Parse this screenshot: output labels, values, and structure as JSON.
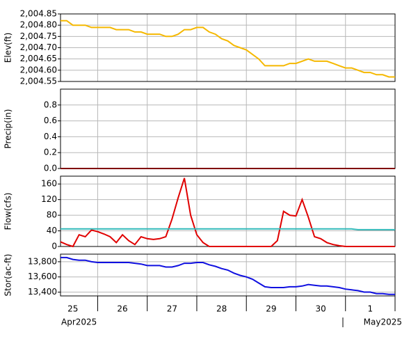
{
  "chart_data": [
    {
      "type": "line",
      "ylabel": "Elev(ft)",
      "ylim": [
        2004.55,
        2004.85
      ],
      "yticks": [
        {
          "value": 2004.55,
          "label": "2,004.55"
        },
        {
          "value": 2004.6,
          "label": "2,004.60"
        },
        {
          "value": 2004.65,
          "label": "2,004.65"
        },
        {
          "value": 2004.7,
          "label": "2,004.70"
        },
        {
          "value": 2004.75,
          "label": "2,004.75"
        },
        {
          "value": 2004.8,
          "label": "2,004.80"
        },
        {
          "value": 2004.85,
          "label": "2,004.85"
        }
      ],
      "series": [
        {
          "color": "#f5b800",
          "values": [
            2004.82,
            2004.82,
            2004.8,
            2004.8,
            2004.8,
            2004.79,
            2004.79,
            2004.79,
            2004.79,
            2004.78,
            2004.78,
            2004.78,
            2004.77,
            2004.77,
            2004.76,
            2004.76,
            2004.76,
            2004.75,
            2004.75,
            2004.76,
            2004.78,
            2004.78,
            2004.79,
            2004.79,
            2004.77,
            2004.76,
            2004.74,
            2004.73,
            2004.71,
            2004.7,
            2004.69,
            2004.67,
            2004.65,
            2004.62,
            2004.62,
            2004.62,
            2004.62,
            2004.63,
            2004.63,
            2004.64,
            2004.65,
            2004.64,
            2004.64,
            2004.64,
            2004.63,
            2004.62,
            2004.61,
            2004.61,
            2004.6,
            2004.59,
            2004.59,
            2004.58,
            2004.58,
            2004.57,
            2004.57
          ]
        }
      ]
    },
    {
      "type": "line",
      "ylabel": "Precip(in)",
      "ylim": [
        0,
        1
      ],
      "yticks": [
        {
          "value": 0,
          "label": "0.0"
        },
        0.2,
        0.4,
        0.6,
        0.8
      ],
      "series": [
        {
          "color": "#800000",
          "values": [
            0,
            0,
            0,
            0,
            0,
            0,
            0,
            0,
            0,
            0,
            0,
            0,
            0,
            0,
            0,
            0,
            0,
            0,
            0,
            0,
            0,
            0,
            0,
            0,
            0,
            0,
            0,
            0,
            0,
            0,
            0,
            0,
            0,
            0,
            0,
            0,
            0,
            0,
            0,
            0,
            0,
            0,
            0,
            0,
            0,
            0,
            0,
            0,
            0,
            0,
            0,
            0,
            0,
            0,
            0
          ]
        }
      ]
    },
    {
      "type": "line",
      "ylabel": "Flow(cfs)",
      "ylim": [
        0,
        180
      ],
      "yticks": [
        0,
        40,
        80,
        120,
        160
      ],
      "series": [
        {
          "color": "#e00000",
          "values": [
            12,
            5,
            0,
            30,
            25,
            42,
            38,
            32,
            25,
            10,
            30,
            15,
            5,
            25,
            20,
            18,
            20,
            25,
            70,
            125,
            175,
            80,
            30,
            10,
            0,
            0,
            0,
            0,
            0,
            0,
            0,
            0,
            0,
            0,
            0,
            15,
            90,
            80,
            78,
            120,
            75,
            25,
            20,
            10,
            5,
            2,
            0,
            0,
            0,
            0,
            0,
            0,
            0,
            0,
            0
          ]
        },
        {
          "color": "#30b8b8",
          "values": [
            45,
            45,
            45,
            45,
            45,
            45,
            45,
            45,
            45,
            45,
            45,
            45,
            45,
            45,
            45,
            45,
            45,
            45,
            45,
            45,
            45,
            45,
            45,
            45,
            45,
            45,
            45,
            45,
            45,
            45,
            45,
            45,
            45,
            45,
            45,
            45,
            45,
            45,
            45,
            45,
            45,
            45,
            45,
            45,
            45,
            45,
            45,
            45,
            43,
            43,
            43,
            43,
            43,
            43,
            43
          ]
        }
      ]
    },
    {
      "type": "line",
      "ylabel": "Stor(ac-ft)",
      "ylim": [
        13350,
        13900
      ],
      "yticks": [
        {
          "value": 13400,
          "label": "13,400"
        },
        {
          "value": 13600,
          "label": "13,600"
        },
        {
          "value": 13800,
          "label": "13,800"
        }
      ],
      "series": [
        {
          "color": "#1010e0",
          "values": [
            13855,
            13855,
            13830,
            13820,
            13820,
            13800,
            13790,
            13790,
            13790,
            13790,
            13790,
            13790,
            13780,
            13770,
            13750,
            13750,
            13750,
            13730,
            13730,
            13750,
            13780,
            13780,
            13790,
            13790,
            13760,
            13740,
            13710,
            13690,
            13650,
            13620,
            13600,
            13570,
            13520,
            13470,
            13460,
            13460,
            13460,
            13470,
            13470,
            13480,
            13500,
            13490,
            13480,
            13480,
            13470,
            13460,
            13440,
            13430,
            13420,
            13400,
            13400,
            13380,
            13380,
            13370,
            13370
          ]
        }
      ],
      "categories": [
        null,
        null,
        "25",
        null,
        null,
        null,
        null,
        null,
        null,
        null,
        "26",
        null,
        null,
        null,
        null,
        null,
        null,
        null,
        "27",
        null,
        null,
        null,
        null,
        null,
        null,
        null,
        "28",
        null,
        null,
        null,
        null,
        null,
        null,
        null,
        "29",
        null,
        null,
        null,
        null,
        null,
        null,
        null,
        "30",
        null,
        null,
        null,
        null,
        null,
        null,
        null,
        "1",
        null,
        null,
        null,
        null
      ],
      "x_group_labels": [
        "Apr2025",
        "May2025"
      ]
    }
  ]
}
